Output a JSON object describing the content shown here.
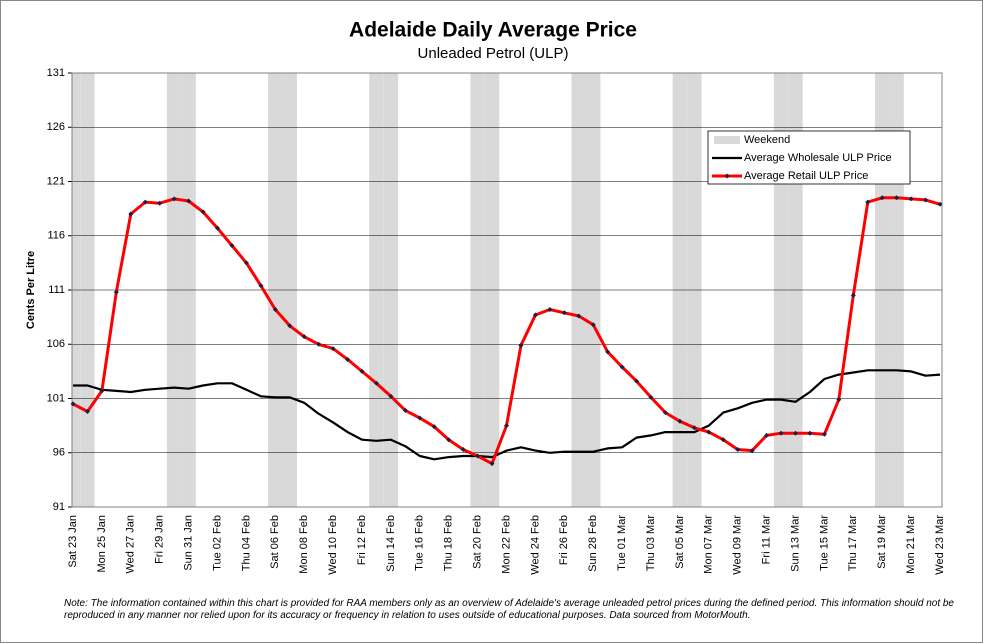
{
  "chart_data": {
    "type": "line",
    "title": "Adelaide Daily Average Price",
    "subtitle": "Unleaded Petrol (ULP)",
    "y_label": "Cents Per Litre",
    "note": "Note: The information contained within this chart is provided for RAA members only as an overview of Adelaide's average unleaded petrol prices during the defined period. This information should not be reproduced in any manner nor relied upon for its accuracy or frequency in relation to uses outside of educational purposes. Data sourced from MotorMouth.",
    "categories": [
      "Sat 23 Jan",
      null,
      "Mon 25 Jan",
      null,
      "Wed 27 Jan",
      null,
      "Fri 29 Jan",
      null,
      "Sun 31 Jan",
      null,
      "Tue 02 Feb",
      null,
      "Thu 04 Feb",
      null,
      "Sat 06 Feb",
      null,
      "Mon 08 Feb",
      null,
      "Wed 10 Feb",
      null,
      "Fri 12 Feb",
      null,
      "Sun 14 Feb",
      null,
      "Tue 16 Feb",
      null,
      "Thu 18 Feb",
      null,
      "Sat 20 Feb",
      null,
      "Mon 22 Feb",
      null,
      "Wed 24 Feb",
      null,
      "Fri 26 Feb",
      null,
      "Sun 28 Feb",
      null,
      "Tue 01 Mar",
      null,
      "Thu 03 Mar",
      null,
      "Sat 05 Mar",
      null,
      "Mon 07 Mar",
      null,
      "Wed 09 Mar",
      null,
      "Fri 11 Mar",
      null,
      "Sun 13 Mar",
      null,
      "Tue 15 Mar",
      null,
      "Thu 17 Mar",
      null,
      "Sat 19 Mar",
      null,
      "Mon 21 Mar",
      null,
      "Wed 23 Mar"
    ],
    "series": [
      {
        "name": "Weekend",
        "kind": "column",
        "color": "#d9d9d9",
        "values": [
          131,
          131,
          null,
          null,
          null,
          null,
          null,
          131,
          131,
          null,
          null,
          null,
          null,
          null,
          131,
          131,
          null,
          null,
          null,
          null,
          null,
          131,
          131,
          null,
          null,
          null,
          null,
          null,
          131,
          131,
          null,
          null,
          null,
          null,
          null,
          131,
          131,
          null,
          null,
          null,
          null,
          null,
          131,
          131,
          null,
          null,
          null,
          null,
          null,
          131,
          131,
          null,
          null,
          null,
          null,
          null,
          131,
          131,
          null,
          null,
          null
        ]
      },
      {
        "name": "Average Wholesale ULP Price",
        "kind": "line",
        "color": "#000000",
        "values": [
          102.2,
          102.2,
          101.8,
          101.7,
          101.6,
          101.8,
          101.9,
          102.0,
          101.9,
          102.2,
          102.4,
          102.4,
          101.8,
          101.2,
          101.1,
          101.1,
          100.6,
          99.6,
          98.8,
          97.9,
          97.2,
          97.1,
          97.2,
          96.6,
          95.7,
          95.4,
          95.6,
          95.7,
          95.7,
          95.6,
          96.2,
          96.5,
          96.2,
          96.0,
          96.1,
          96.1,
          96.1,
          96.4,
          96.5,
          97.4,
          97.6,
          97.9,
          97.9,
          97.9,
          98.5,
          99.7,
          100.1,
          100.6,
          100.9,
          100.9,
          100.7,
          101.6,
          102.8,
          103.2,
          103.4,
          103.6,
          103.6,
          103.6,
          103.5,
          103.1,
          103.2
        ]
      },
      {
        "name": "Average Retail ULP Price",
        "kind": "line",
        "color": "#ff0000",
        "marker_color": "#1f1f3f",
        "values": [
          100.5,
          99.8,
          101.7,
          110.8,
          118.0,
          119.1,
          119.0,
          119.4,
          119.2,
          118.2,
          116.7,
          115.1,
          113.5,
          111.4,
          109.2,
          107.7,
          106.7,
          106.0,
          105.6,
          104.6,
          103.5,
          102.4,
          101.2,
          99.9,
          99.2,
          98.4,
          97.2,
          96.3,
          95.7,
          95.0,
          98.5,
          105.9,
          108.7,
          109.2,
          108.9,
          108.6,
          107.8,
          105.3,
          103.9,
          102.6,
          101.1,
          99.7,
          98.9,
          98.3,
          97.9,
          97.2,
          96.3,
          96.2,
          97.6,
          97.8,
          97.8,
          97.8,
          97.7,
          100.9,
          110.5,
          119.1,
          119.5,
          119.5,
          119.4,
          119.3,
          118.9
        ]
      }
    ],
    "ylim": [
      91,
      131
    ],
    "yticks": [
      91,
      96,
      101,
      106,
      111,
      116,
      121,
      126,
      131
    ],
    "grid": true,
    "legend": "upper right"
  }
}
